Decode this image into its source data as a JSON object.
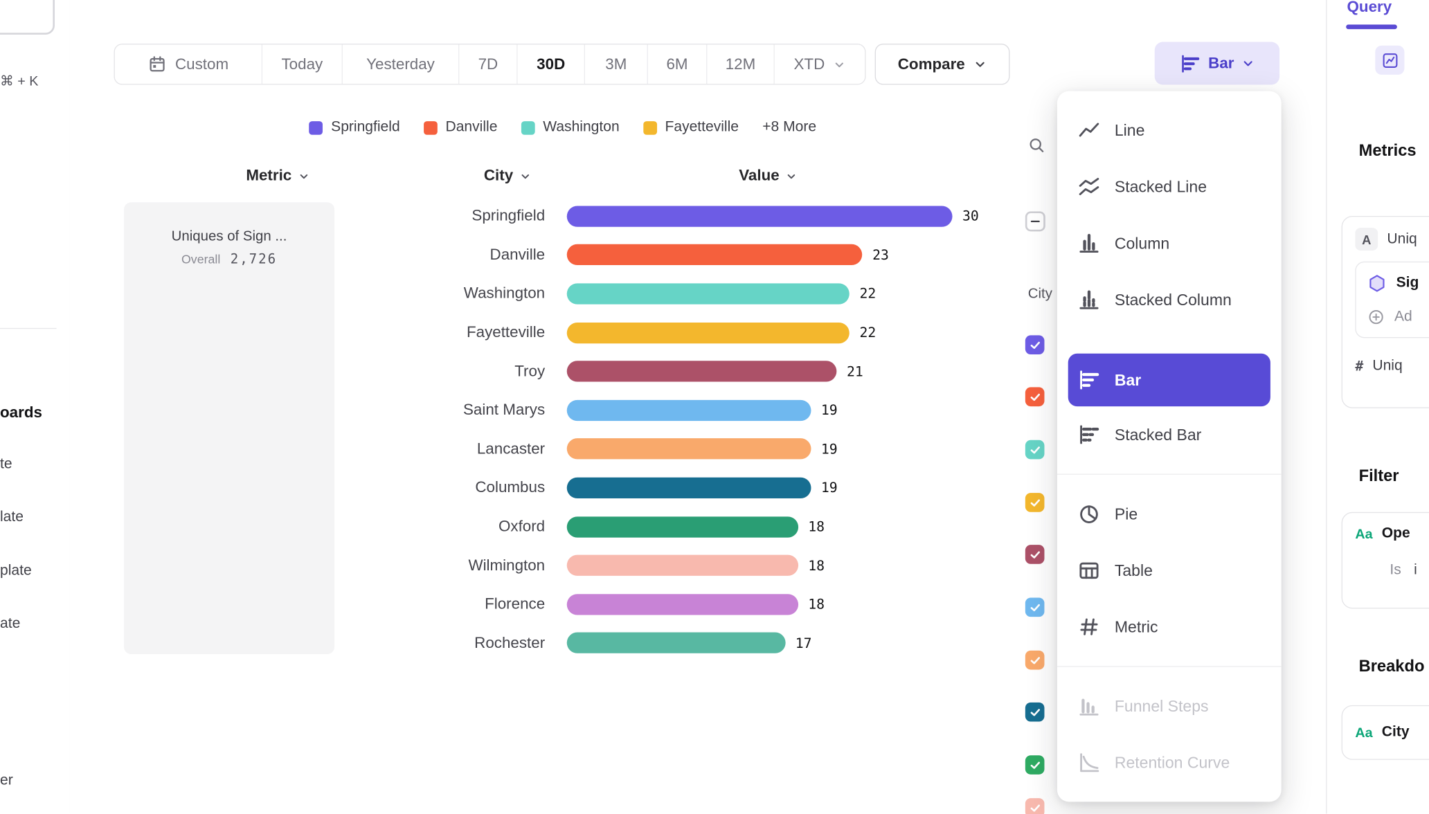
{
  "colors": {
    "accent": "#584bd6",
    "accent_light_bg": "#e8e5fb",
    "border": "#e4e4e7",
    "text_dark": "#18181b",
    "text_gray": "#71717a",
    "disabled": "#c3c3c9"
  },
  "left_rail": {
    "shortcut_hint": "⌘ + K",
    "nav_fragments": [
      "oards",
      "te",
      "late",
      "plate",
      "ate",
      "er"
    ]
  },
  "toolbar": {
    "date_ranges": [
      "Custom",
      "Today",
      "Yesterday",
      "7D",
      "30D",
      "3M",
      "6M",
      "12M",
      "XTD"
    ],
    "selected_range": "30D",
    "compare_label": "Compare",
    "chart_type_label": "Bar"
  },
  "legend": {
    "items": [
      {
        "label": "Springfield",
        "color": "#6d5ce5"
      },
      {
        "label": "Danville",
        "color": "#f5603d"
      },
      {
        "label": "Washington",
        "color": "#66d4c6"
      },
      {
        "label": "Fayetteville",
        "color": "#f3b72d"
      }
    ],
    "more_label": "+8 More"
  },
  "columns": {
    "metric": "Metric",
    "city": "City",
    "value": "Value"
  },
  "metric_card": {
    "title": "Uniques of Sign ...",
    "overall_label": "Overall",
    "overall_value": "2,726"
  },
  "chart_data": {
    "type": "bar",
    "orientation": "horizontal",
    "title": "Uniques of Sign ...",
    "overall_total": "2,726",
    "categories": [
      "Springfield",
      "Danville",
      "Washington",
      "Fayetteville",
      "Troy",
      "Saint Marys",
      "Lancaster",
      "Columbus",
      "Oxford",
      "Wilmington",
      "Florence",
      "Rochester"
    ],
    "values": [
      30,
      23,
      22,
      22,
      21,
      19,
      19,
      19,
      18,
      18,
      18,
      17
    ],
    "colors": [
      "#6d5ce5",
      "#f5603d",
      "#66d4c6",
      "#f3b72d",
      "#ac5168",
      "#6fb8ef",
      "#f9a96b",
      "#176e91",
      "#2a9e74",
      "#f8b9ae",
      "#c883d6",
      "#58b8a2"
    ],
    "xlim": [
      0,
      30
    ],
    "value_labels_shown": true,
    "legend_position": "top"
  },
  "filter_list": {
    "header": "City",
    "select_all_state": "indeterminate",
    "visible_checkbox_colors": [
      "#6d5ce5",
      "#f5603d",
      "#66d4c6",
      "#f3b72d",
      "#ac5168",
      "#6fb8ef",
      "#f9a96b",
      "#176e91",
      "#2fab63",
      "#f8b9ae"
    ]
  },
  "chart_type_menu": {
    "items": [
      {
        "label": "Line"
      },
      {
        "label": "Stacked Line"
      },
      {
        "label": "Column"
      },
      {
        "label": "Stacked Column"
      },
      {
        "label": "Bar",
        "selected": true
      },
      {
        "label": "Stacked Bar"
      },
      {
        "label": "Pie"
      },
      {
        "label": "Table"
      },
      {
        "label": "Metric"
      },
      {
        "label": "Funnel Steps",
        "disabled": true
      },
      {
        "label": "Retention Curve",
        "disabled": true
      }
    ]
  },
  "query_panel": {
    "tab_label": "Query",
    "metrics_heading": "Metrics",
    "metric_letter_badge": "A",
    "metric_name_fragment": "Uniq",
    "event_fragment": "Sig",
    "add_fragment": "Ad",
    "aggregation_symbol": "#",
    "aggregation_fragment": "Uniq",
    "filter_heading": "Filter",
    "filter_property_badge": "Aa",
    "filter_property_fragment": "Ope",
    "filter_operator": "Is",
    "filter_value_fragment": "i",
    "breakdown_heading": "Breakdo",
    "breakdown_property_badge": "Aa",
    "breakdown_property_fragment": "City"
  }
}
